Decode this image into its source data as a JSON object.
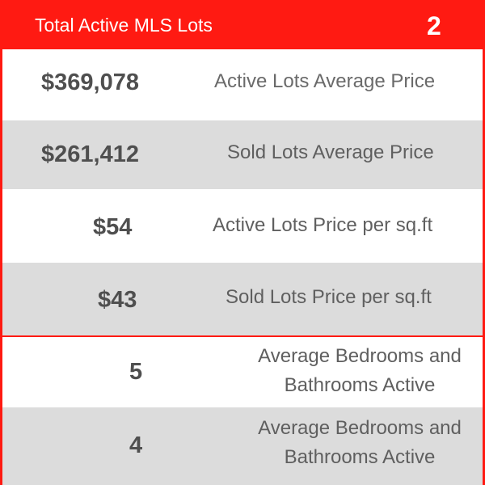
{
  "header": {
    "title": "Total Active MLS Lots",
    "count": "2"
  },
  "rows": [
    {
      "value": "$369,078",
      "label": "Active Lots Average Price"
    },
    {
      "value": "$261,412",
      "label": "Sold Lots Average Price"
    },
    {
      "value": "$54",
      "label": "Active Lots Price per sq.ft"
    },
    {
      "value": "$43",
      "label": "Sold Lots Price per sq.ft"
    },
    {
      "value": "5",
      "label": "Average Bedrooms and Bathrooms Active"
    },
    {
      "value": "4",
      "label": "Average Bedrooms and Bathrooms Active"
    }
  ],
  "colors": {
    "accent": "#ff1a12",
    "row_alt": "#dcdcdc",
    "value_text": "#4f4f4f",
    "label_text": "#5f5f5f"
  }
}
